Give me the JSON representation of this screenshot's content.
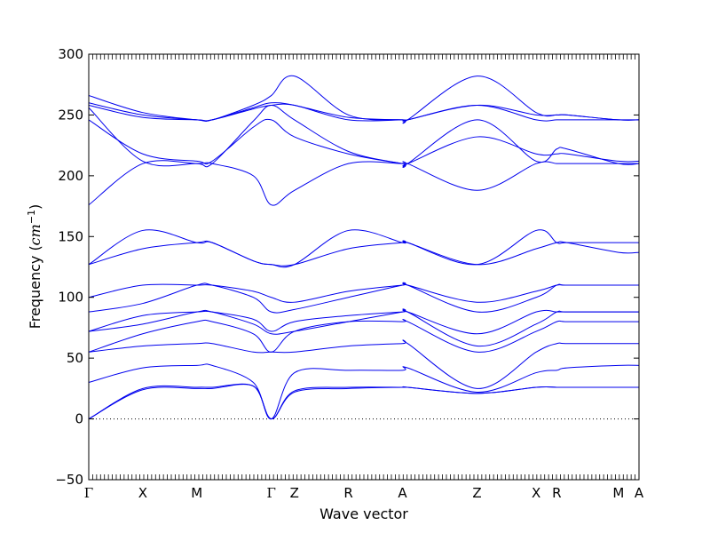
{
  "chart_data": {
    "type": "line",
    "title": "",
    "xlabel": "Wave vector",
    "ylabel_text": "Frequency (",
    "ylabel_unit_base": "cm",
    "ylabel_unit_exp": "−1",
    "ylabel_close": ")",
    "ylim": [
      -50,
      300
    ],
    "yticks": [
      -50,
      0,
      50,
      100,
      150,
      200,
      250,
      300
    ],
    "xlim": [
      0,
      10.7
    ],
    "high_symmetry_points": [
      {
        "label": "Γ",
        "x": 0.0
      },
      {
        "label": "X",
        "x": 1.05
      },
      {
        "label": "M",
        "x": 2.1
      },
      {
        "label": "Γ",
        "x": 3.55
      },
      {
        "label": "Z",
        "x": 4.0
      },
      {
        "label": "R",
        "x": 5.05
      },
      {
        "label": "A",
        "x": 6.1
      },
      {
        "label": "Z",
        "x": 7.55
      },
      {
        "label": "X",
        "x": 8.7
      },
      {
        "label": "R",
        "x": 9.1
      },
      {
        "label": "M",
        "x": 10.3
      },
      {
        "label": "A",
        "x": 10.7
      }
    ],
    "zero_line": 0,
    "line_color": "#0000ee",
    "series": [
      {
        "values": [
          0,
          24,
          25,
          25,
          27,
          0,
          22,
          25,
          26,
          26,
          21,
          26,
          26,
          26,
          26,
          26
        ]
      },
      {
        "values": [
          0,
          25,
          26,
          26,
          27,
          0,
          23,
          26,
          26,
          26,
          21,
          26,
          26,
          26,
          26,
          26
        ]
      },
      {
        "values": [
          30,
          42,
          44,
          44,
          30,
          0,
          38,
          40,
          40,
          42,
          22,
          38,
          40,
          42,
          44,
          44
        ]
      },
      {
        "values": [
          55,
          60,
          62,
          62,
          55,
          55,
          55,
          60,
          62,
          62,
          25,
          55,
          62,
          62,
          62,
          62
        ]
      },
      {
        "values": [
          55,
          70,
          80,
          80,
          70,
          55,
          72,
          80,
          80,
          80,
          55,
          72,
          80,
          80,
          80,
          80
        ]
      },
      {
        "values": [
          72,
          78,
          88,
          88,
          78,
          70,
          72,
          80,
          88,
          88,
          60,
          78,
          88,
          88,
          88,
          88
        ]
      },
      {
        "values": [
          72,
          85,
          88,
          88,
          82,
          72,
          80,
          85,
          88,
          88,
          70,
          88,
          88,
          88,
          88,
          88
        ]
      },
      {
        "values": [
          88,
          95,
          110,
          110,
          100,
          88,
          90,
          100,
          110,
          110,
          88,
          100,
          110,
          110,
          110,
          110
        ]
      },
      {
        "values": [
          100,
          110,
          110,
          110,
          105,
          100,
          96,
          105,
          110,
          110,
          96,
          105,
          110,
          110,
          110,
          110
        ]
      },
      {
        "values": [
          127,
          140,
          145,
          145,
          130,
          127,
          127,
          140,
          145,
          145,
          127,
          140,
          145,
          145,
          137,
          137
        ]
      },
      {
        "values": [
          127,
          155,
          145,
          145,
          130,
          127,
          127,
          155,
          145,
          145,
          127,
          155,
          145,
          145,
          145,
          145
        ]
      },
      {
        "values": [
          176,
          210,
          210,
          210,
          200,
          176,
          188,
          210,
          210,
          210,
          188,
          210,
          210,
          210,
          210,
          210
        ]
      },
      {
        "values": [
          246,
          218,
          212,
          212,
          240,
          246,
          232,
          218,
          210,
          210,
          232,
          218,
          218,
          218,
          212,
          212
        ]
      },
      {
        "values": [
          256,
          212,
          210,
          210,
          245,
          258,
          246,
          220,
          210,
          210,
          246,
          212,
          222,
          222,
          210,
          210
        ]
      },
      {
        "values": [
          258,
          248,
          246,
          246,
          255,
          258,
          258,
          246,
          246,
          246,
          258,
          246,
          246,
          246,
          246,
          246
        ]
      },
      {
        "values": [
          260,
          250,
          246,
          246,
          256,
          260,
          258,
          248,
          246,
          246,
          258,
          250,
          250,
          250,
          246,
          246
        ]
      },
      {
        "values": [
          266,
          252,
          246,
          246,
          258,
          266,
          282,
          250,
          246,
          246,
          282,
          252,
          250,
          250,
          246,
          246
        ]
      }
    ],
    "series_x": [
      0,
      1.05,
      2.1,
      2.4,
      3.2,
      3.55,
      4.0,
      5.05,
      6.1,
      6.2,
      7.55,
      8.7,
      9.1,
      9.3,
      10.3,
      10.7
    ]
  }
}
